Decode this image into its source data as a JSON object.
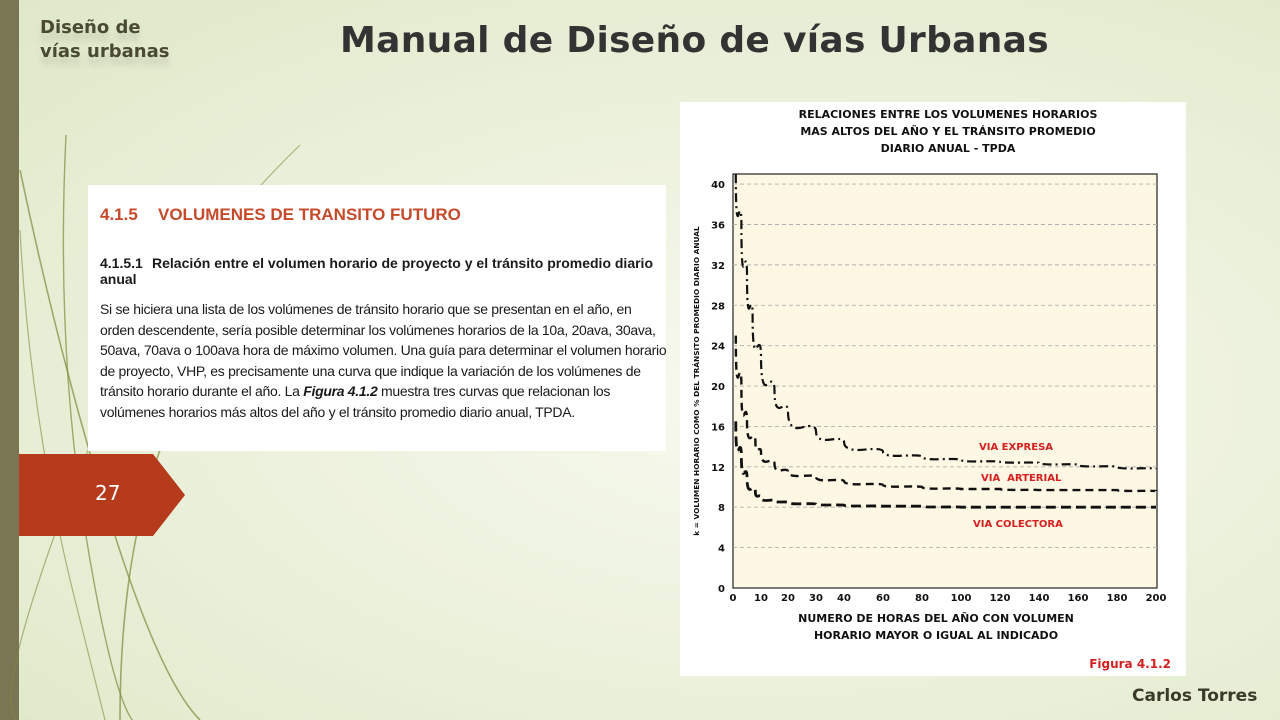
{
  "slide": {
    "brand": [
      "Diseño de",
      "vías urbanas"
    ],
    "title": "Manual de Diseño de vías Urbanas",
    "slide_number": "27",
    "author": "Carlos Torres",
    "accent_color": "#b63a1c"
  },
  "text_block": {
    "section_num": "4.1.5",
    "section_title": "VOLUMENES DE TRANSITO FUTURO",
    "subsection_num": "4.1.5.1",
    "subsection_title": "Relación entre el volumen horario de proyecto y el tránsito promedio diario anual",
    "paragraph_before_fig": "Si se hiciera una lista de los volúmenes de tránsito horario que se presentan en el año, en orden descendente, sería posible determinar los volúmenes horarios de la 10a, 20ava, 30ava, 50ava, 70ava o 100ava hora de máximo volumen. Una guía para determinar el volumen horario de proyecto, VHP, es precisamente una curva que indique la variación de los volúmenes de tránsito horario durante el año. La",
    "figure_ref": "Figura 4.1.2",
    "paragraph_after_fig": "muestra tres curvas que relacionan los volúmenes horarios más altos del año y el tránsito promedio diario anual, TPDA."
  },
  "chart_data": {
    "type": "line",
    "title": [
      "RELACIONES ENTRE LOS VOLUMENES HORARIOS",
      "MAS ALTOS DEL AÑO Y EL TRÁNSITO PROMEDIO",
      "DIARIO ANUAL - TPDA"
    ],
    "xlabel": [
      "NUMERO DE HORAS DEL AÑO CON VOLUMEN",
      "HORARIO MAYOR O IGUAL AL INDICADO"
    ],
    "ylabel": "k = VOLUMEN HORARIO COMO % DEL TRÁNSITO PROMEDIO DIARIO ANUAL",
    "figure_label": "Figura 4.1.2",
    "x_ticks": [
      "0",
      "10",
      "20",
      "30",
      "40",
      "60",
      "80",
      "100",
      "120",
      "140",
      "160",
      "180",
      "200"
    ],
    "y_ticks": [
      "0",
      "4",
      "8",
      "12",
      "16",
      "20",
      "24",
      "28",
      "32",
      "36",
      "40"
    ],
    "ylim": [
      0,
      41
    ],
    "grid": true,
    "x_scale_note": "non-uniform: 0-40 in steps of 10, then 40-200 in steps of 20",
    "series": [
      {
        "name": "VIA EXPRESA",
        "style": "dash-dot",
        "color": "#111111",
        "x": [
          1,
          3,
          5,
          7,
          10,
          15,
          20,
          30,
          40,
          60,
          80,
          100,
          120,
          140,
          160,
          180,
          200
        ],
        "y": [
          41,
          36,
          31,
          27,
          23,
          19.5,
          17.5,
          15.5,
          14.5,
          13.5,
          13,
          12.7,
          12.5,
          12.4,
          12.2,
          12,
          11.8
        ]
      },
      {
        "name": "VIA ARTERIAL",
        "style": "dashed",
        "color": "#111111",
        "x": [
          1,
          3,
          5,
          8,
          10,
          15,
          20,
          30,
          40,
          60,
          80,
          100,
          120,
          140,
          160,
          180,
          200
        ],
        "y": [
          25,
          20,
          16.5,
          14.5,
          13.5,
          12.3,
          11.5,
          11,
          10.6,
          10.2,
          10,
          9.8,
          9.8,
          9.7,
          9.7,
          9.7,
          9.6
        ]
      },
      {
        "name": "VIA COLECTORA",
        "style": "dashed-heavy",
        "color": "#111111",
        "x": [
          1,
          3,
          5,
          8,
          10,
          15,
          20,
          30,
          40,
          60,
          80,
          100,
          120,
          140,
          160,
          180,
          200
        ],
        "y": [
          16.5,
          13,
          11,
          9.5,
          9,
          8.6,
          8.5,
          8.3,
          8.2,
          8.1,
          8.1,
          8,
          8,
          8,
          8,
          8,
          8
        ]
      }
    ],
    "annotations": [
      {
        "text": "VIA EXPRESA",
        "color": "#d42020"
      },
      {
        "text": "VIA  ARTERIAL",
        "color": "#d42020"
      },
      {
        "text": "VIA COLECTORA",
        "color": "#d42020"
      }
    ]
  }
}
